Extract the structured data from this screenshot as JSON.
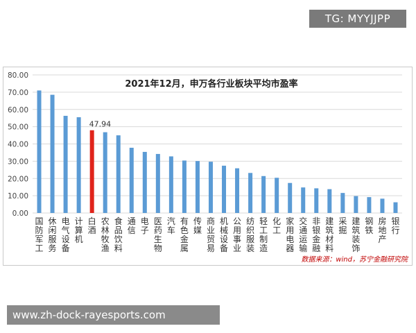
{
  "watermark": {
    "tg_label": "TG: MYYJJPP",
    "url": "www.zh-dock-rayesports.com"
  },
  "chart_data": {
    "type": "bar",
    "title": "2021年12月，申万各行业板块平均市盈率",
    "xlabel": "",
    "ylabel": "",
    "ylim": [
      0,
      80
    ],
    "yticks": [
      "0.00",
      "10.00",
      "20.00",
      "30.00",
      "40.00",
      "50.00",
      "60.00",
      "70.00",
      "80.00"
    ],
    "grid": true,
    "categories": [
      "国防军工",
      "休闲服务",
      "电气设备",
      "计算机",
      "白酒",
      "农林牧渔",
      "食品饮料",
      "通信",
      "电子",
      "医药生物",
      "汽车",
      "有色金属",
      "传媒",
      "商业贸易",
      "机械设备",
      "公用事业",
      "纺织服装",
      "轻工制造",
      "化工",
      "家用电器",
      "交通运输",
      "非银金融",
      "建筑材料",
      "采掘",
      "建筑装饰",
      "钢铁",
      "房地产",
      "银行"
    ],
    "values": [
      71.0,
      68.5,
      56.3,
      55.5,
      47.94,
      46.8,
      45.0,
      37.8,
      35.4,
      34.2,
      32.8,
      30.4,
      30.1,
      29.7,
      27.4,
      25.9,
      23.2,
      21.4,
      20.4,
      17.4,
      14.8,
      14.3,
      13.8,
      11.6,
      9.8,
      9.2,
      8.3,
      6.2
    ],
    "data_labels": {
      "4": "47.94"
    },
    "source": "数据来源：wind，苏宁金融研究院",
    "colors": {
      "default_bar": "#5b9bd5",
      "highlight_bar": "#e0241b",
      "grid": "#d9d9d9",
      "source_text": "#c00000"
    }
  }
}
